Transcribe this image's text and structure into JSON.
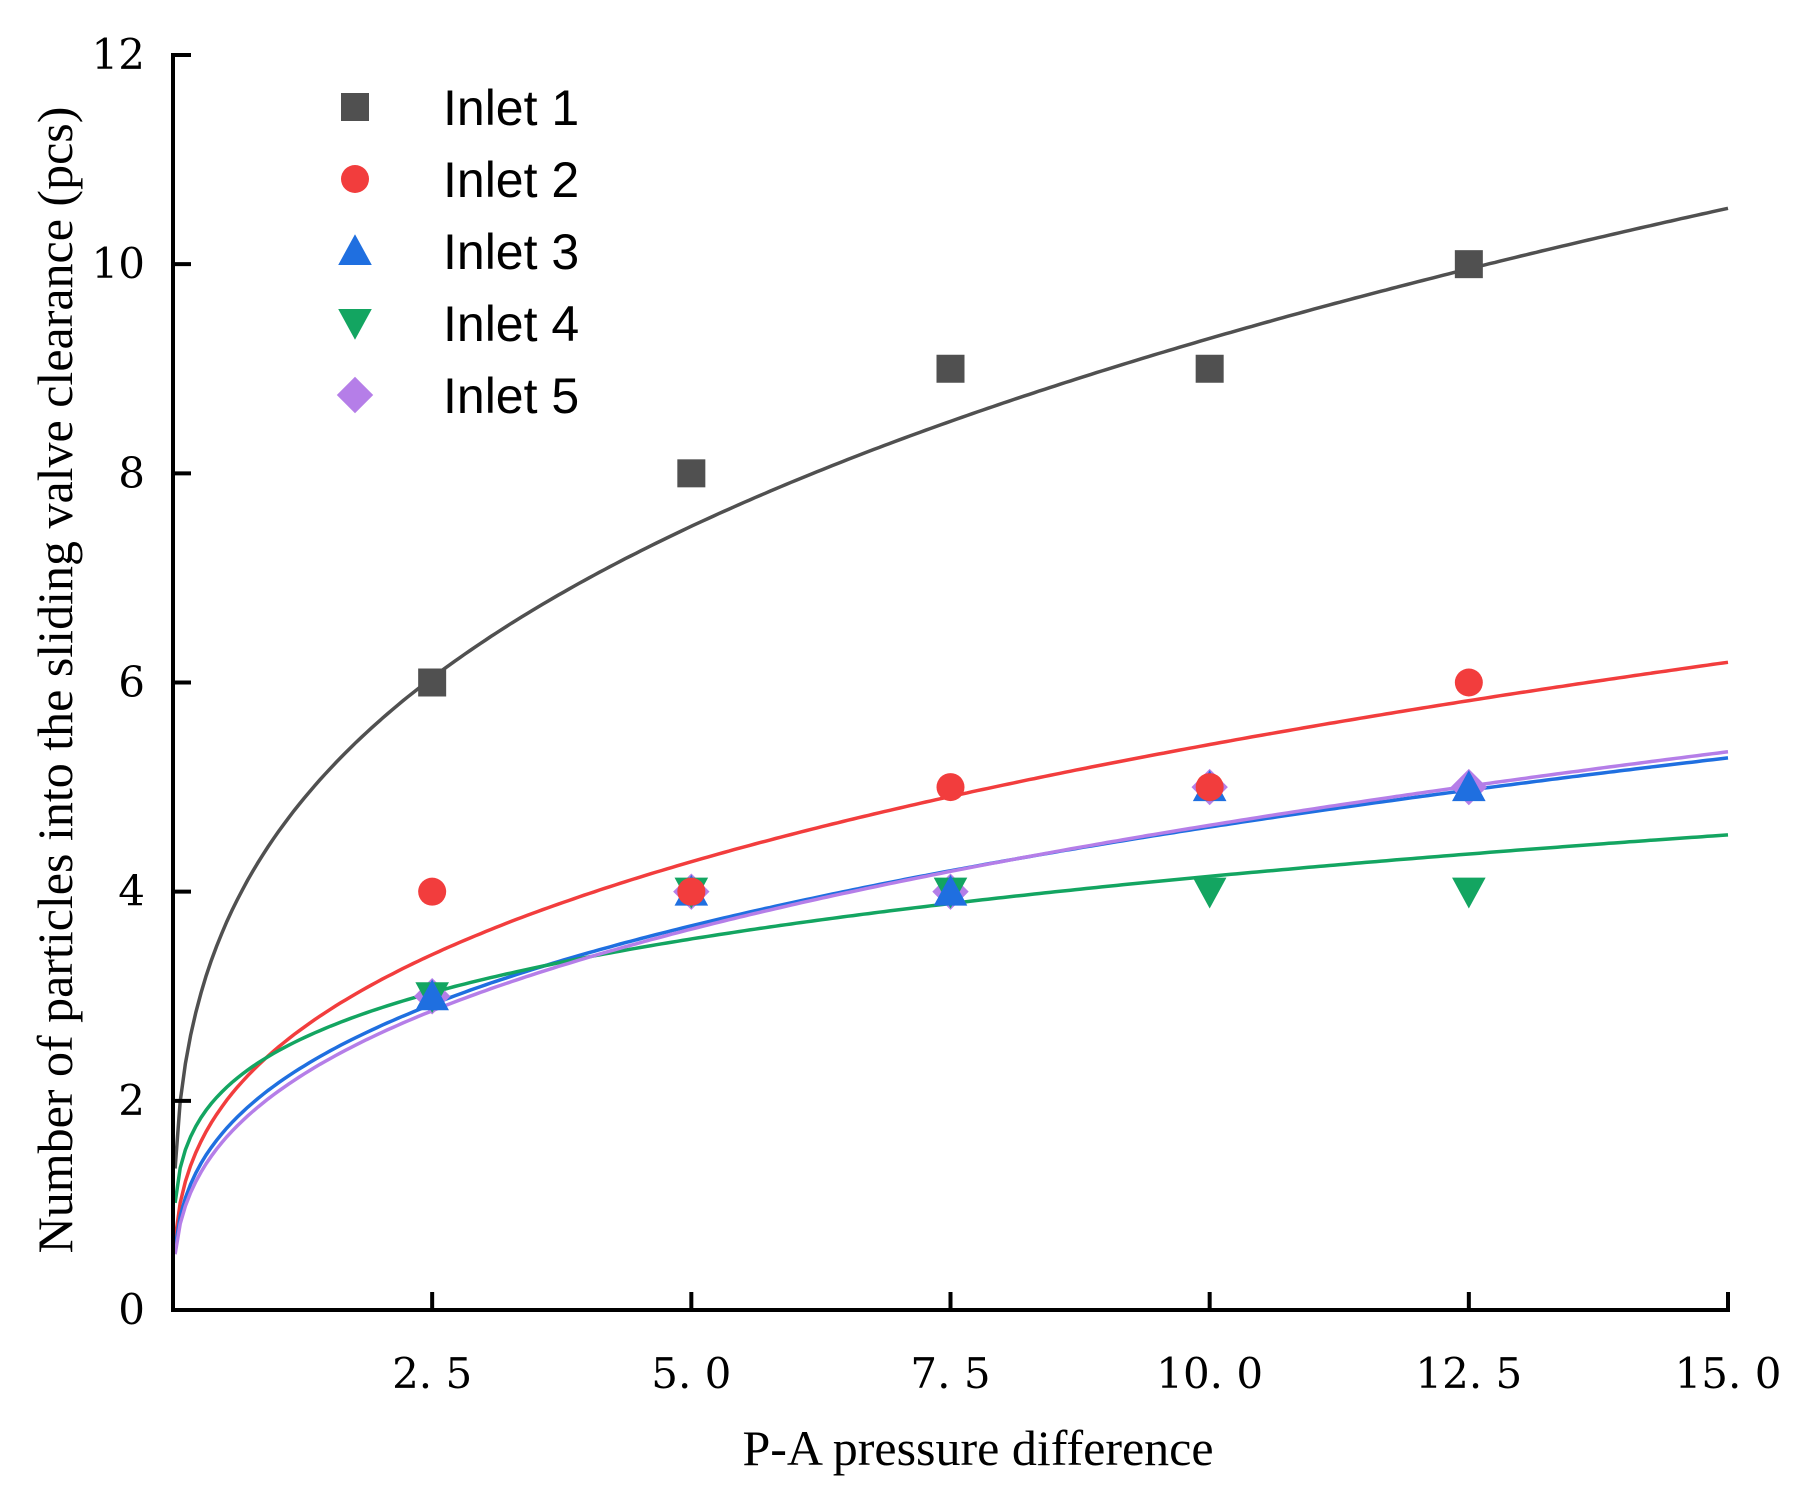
{
  "chart_data": {
    "type": "scatter",
    "title": "",
    "xlabel": "P-A pressure difference",
    "ylabel": "Number of particles into the sliding valve clearance  (pcs)",
    "xlim": [
      0,
      15
    ],
    "ylim": [
      0,
      12
    ],
    "xticks": [
      2.5,
      5.0,
      7.5,
      10.0,
      12.5,
      15.0
    ],
    "xtick_labels": [
      "2. 5",
      "5. 0",
      "7. 5",
      "10. 0",
      "12. 5",
      "15. 0"
    ],
    "yticks": [
      0,
      2,
      4,
      6,
      8,
      10,
      12
    ],
    "ytick_labels": [
      "0",
      "2",
      "4",
      "6",
      "8",
      "10",
      "12"
    ],
    "grid": false,
    "legend_position": "top-left",
    "x": [
      2.5,
      5.0,
      7.5,
      10.0,
      12.5
    ],
    "series": [
      {
        "name": "Inlet 1",
        "marker": "square",
        "color": "#505050",
        "values": [
          6,
          8,
          9,
          9,
          10
        ],
        "fit": {
          "form": "power",
          "a": 4.55,
          "b": 0.31
        }
      },
      {
        "name": "Inlet 2",
        "marker": "circle",
        "color": "#f23d3d",
        "values": [
          4,
          4,
          5,
          5,
          6
        ],
        "fit": {
          "form": "power",
          "a": 2.5,
          "b": 0.335
        }
      },
      {
        "name": "Inlet 3",
        "marker": "triangle-up",
        "color": "#1f6fe0",
        "values": [
          3,
          4,
          4,
          5,
          5
        ],
        "fit": {
          "form": "power",
          "a": 2.16,
          "b": 0.33
        }
      },
      {
        "name": "Inlet 4",
        "marker": "triangle-down",
        "color": "#13a561",
        "values": [
          3,
          4,
          4,
          4,
          4
        ],
        "fit": {
          "form": "power",
          "a": 2.47,
          "b": 0.225
        }
      },
      {
        "name": "Inlet 5",
        "marker": "diamond",
        "color": "#b57ee8",
        "values": [
          3,
          4,
          4,
          5,
          5
        ],
        "fit": {
          "form": "power",
          "a": 2.08,
          "b": 0.348
        }
      }
    ]
  }
}
